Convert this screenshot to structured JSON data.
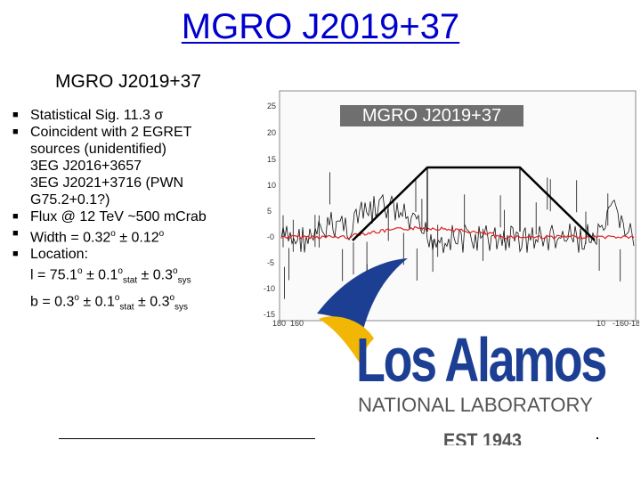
{
  "slide": {
    "title": "MGRO J2019+37",
    "subtitle": "MGRO J2019+37"
  },
  "bullets": [
    "Statistical Sig. 11.3 σ",
    "Coincident with 2 EGRET",
    "Flux @ 12 TeV ~500 mCrab",
    "Width = 0.32",
    "Location:"
  ],
  "egret": {
    "line1": "sources (unidentified)",
    "line2": "3EG J2016+3657",
    "line3": "3EG J2021+3716 (PWN",
    "line4": "G75.2+0.1?)"
  },
  "width_extra": {
    "sup1": "o",
    "mid": " ± 0.12",
    "sup2": "o"
  },
  "location": {
    "l_prefix": "l = 75.1",
    "b_prefix": "b =  0.3",
    "deg": "o",
    "pm": " ± 0.1",
    "stat": "stat",
    "sys_prefix": " ± 0.3",
    "sys": "sys"
  },
  "plot": {
    "label": "MGRO J2019+37",
    "y_ticks": [
      "25",
      "20",
      "15",
      "10",
      "5",
      "-0",
      "-5",
      "-10",
      "-15"
    ],
    "x_ticks_left": [
      "180",
      "160"
    ],
    "x_ticks_right": [
      "10",
      "-160",
      "-18"
    ]
  },
  "logo": {
    "name": "Los Alamos",
    "sub": "NATIONAL LABORATORY",
    "est": "EST 1943",
    "colors": {
      "blue": "#1c3f94",
      "yellow": "#f2b705",
      "grey": "#555555"
    }
  }
}
